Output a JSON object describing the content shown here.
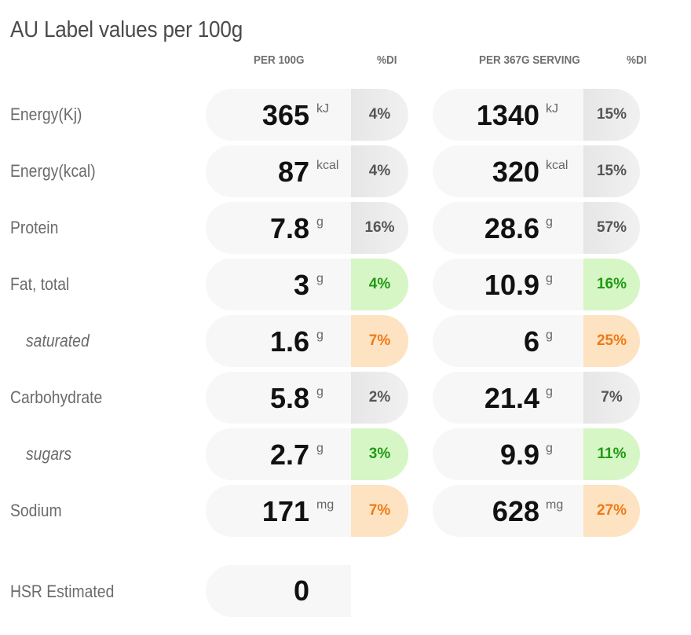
{
  "title": "AU Label values per 100g",
  "headers": {
    "per100g": "PER 100G",
    "di1": "%DI",
    "perServing": "PER 367G SERVING",
    "di2": "%DI"
  },
  "rows": [
    {
      "label": "Energy(Kj)",
      "sub": false,
      "v100": "365",
      "u100": "kJ",
      "di100": "4%",
      "di100_status": "neutral",
      "vserv": "1340",
      "userv": "kJ",
      "diserv": "15%",
      "diserv_status": "neutral"
    },
    {
      "label": "Energy(kcal)",
      "sub": false,
      "v100": "87",
      "u100": "kcal",
      "di100": "4%",
      "di100_status": "neutral",
      "vserv": "320",
      "userv": "kcal",
      "diserv": "15%",
      "diserv_status": "neutral"
    },
    {
      "label": "Protein",
      "sub": false,
      "v100": "7.8",
      "u100": "g",
      "di100": "16%",
      "di100_status": "neutral",
      "vserv": "28.6",
      "userv": "g",
      "diserv": "57%",
      "diserv_status": "neutral"
    },
    {
      "label": "Fat, total",
      "sub": false,
      "v100": "3",
      "u100": "g",
      "di100": "4%",
      "di100_status": "good",
      "vserv": "10.9",
      "userv": "g",
      "diserv": "16%",
      "diserv_status": "good"
    },
    {
      "label": "saturated",
      "sub": true,
      "v100": "1.6",
      "u100": "g",
      "di100": "7%",
      "di100_status": "warn",
      "vserv": "6",
      "userv": "g",
      "diserv": "25%",
      "diserv_status": "warn"
    },
    {
      "label": "Carbohydrate",
      "sub": false,
      "v100": "5.8",
      "u100": "g",
      "di100": "2%",
      "di100_status": "neutral",
      "vserv": "21.4",
      "userv": "g",
      "diserv": "7%",
      "diserv_status": "neutral"
    },
    {
      "label": "sugars",
      "sub": true,
      "v100": "2.7",
      "u100": "g",
      "di100": "3%",
      "di100_status": "good",
      "vserv": "9.9",
      "userv": "g",
      "diserv": "11%",
      "diserv_status": "good"
    },
    {
      "label": "Sodium",
      "sub": false,
      "v100": "171",
      "u100": "mg",
      "di100": "7%",
      "di100_status": "warn",
      "vserv": "628",
      "userv": "mg",
      "diserv": "27%",
      "diserv_status": "warn"
    }
  ],
  "hsr": {
    "label": "HSR Estimated",
    "value": "0"
  },
  "colors": {
    "good_bg": "#d6f6c6",
    "good_text": "#1f9a12",
    "warn_bg": "#fde3c2",
    "warn_text": "#f07a16",
    "neutral_bg": "#ececec"
  }
}
